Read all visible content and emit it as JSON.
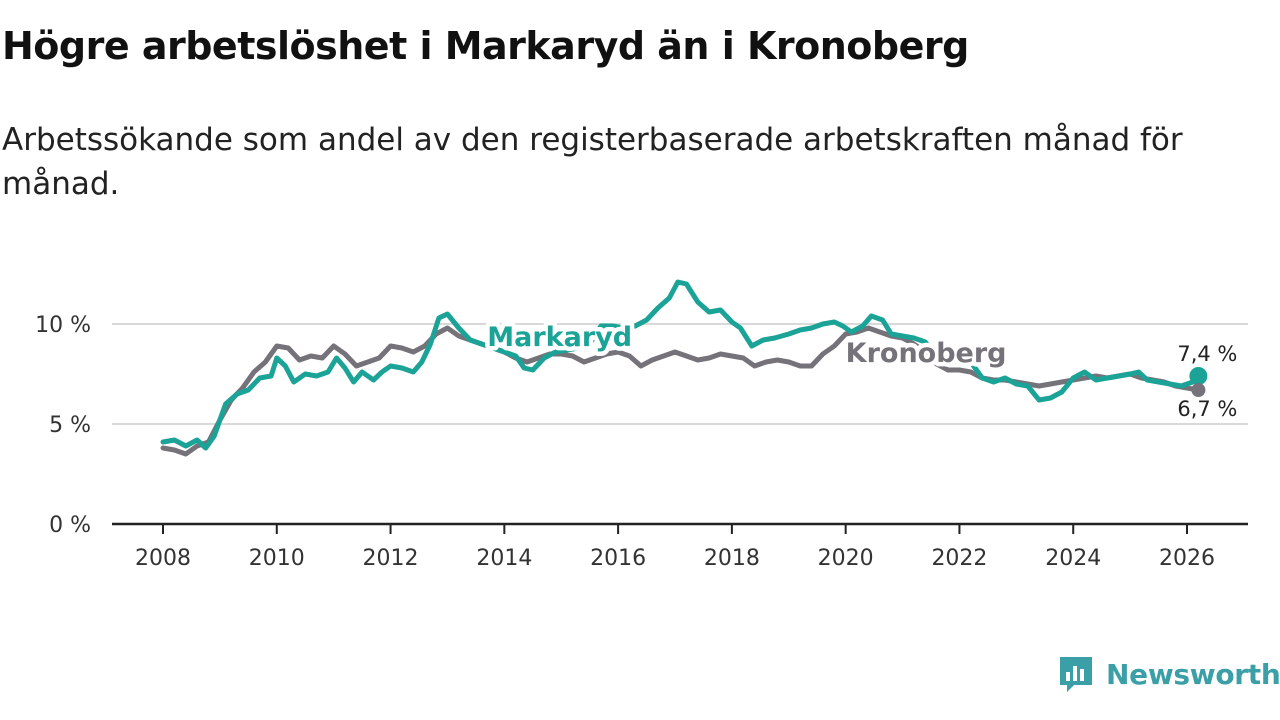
{
  "title": "Högre arbetslöshet i Markaryd än i Kronoberg",
  "subtitle": "Arbetssökande som andel av den registerbaserade arbetskraften månad för månad.",
  "colors": {
    "markaryd": "#1aa396",
    "kronoberg": "#75727a",
    "grid": "#d9d9d9",
    "axis": "#222222",
    "brand": "#3a9fa6"
  },
  "brand": {
    "name": "Newsworthy",
    "icon": "bar-chart-speech-icon"
  },
  "chart_data": {
    "type": "line",
    "title": "Högre arbetslöshet i Markaryd än i Kronoberg",
    "xlabel": "",
    "ylabel": "",
    "xlim": [
      2007.9,
      2026.4
    ],
    "ylim": [
      0,
      12.5
    ],
    "x_ticks": [
      2008,
      2010,
      2012,
      2014,
      2016,
      2018,
      2020,
      2022,
      2024,
      2026
    ],
    "y_ticks": [
      {
        "value": 0,
        "label": "0 %"
      },
      {
        "value": 5,
        "label": "5 %"
      },
      {
        "value": 10,
        "label": "10 %"
      }
    ],
    "grid": true,
    "series": [
      {
        "name": "Markaryd",
        "color": "#1aa396",
        "end_label": "7,4 %",
        "points": [
          [
            2008.0,
            4.1
          ],
          [
            2008.2,
            4.2
          ],
          [
            2008.4,
            3.9
          ],
          [
            2008.6,
            4.2
          ],
          [
            2008.75,
            3.8
          ],
          [
            2008.9,
            4.4
          ],
          [
            2009.1,
            6.0
          ],
          [
            2009.3,
            6.5
          ],
          [
            2009.5,
            6.7
          ],
          [
            2009.7,
            7.3
          ],
          [
            2009.9,
            7.4
          ],
          [
            2010.0,
            8.3
          ],
          [
            2010.15,
            7.9
          ],
          [
            2010.3,
            7.1
          ],
          [
            2010.5,
            7.5
          ],
          [
            2010.7,
            7.4
          ],
          [
            2010.9,
            7.6
          ],
          [
            2011.05,
            8.3
          ],
          [
            2011.2,
            7.8
          ],
          [
            2011.35,
            7.1
          ],
          [
            2011.5,
            7.6
          ],
          [
            2011.7,
            7.2
          ],
          [
            2011.85,
            7.6
          ],
          [
            2012.0,
            7.9
          ],
          [
            2012.2,
            7.8
          ],
          [
            2012.4,
            7.6
          ],
          [
            2012.55,
            8.1
          ],
          [
            2012.7,
            9.0
          ],
          [
            2012.85,
            10.3
          ],
          [
            2013.0,
            10.5
          ],
          [
            2013.2,
            9.8
          ],
          [
            2013.4,
            9.2
          ],
          [
            2013.6,
            9.0
          ],
          [
            2013.8,
            8.8
          ],
          [
            2014.0,
            8.6
          ],
          [
            2014.2,
            8.4
          ],
          [
            2014.35,
            7.8
          ],
          [
            2014.5,
            7.7
          ],
          [
            2014.7,
            8.3
          ],
          [
            2014.9,
            8.6
          ],
          [
            2015.1,
            8.7
          ],
          [
            2015.3,
            8.8
          ],
          [
            2015.5,
            9.0
          ],
          [
            2015.7,
            9.9
          ],
          [
            2015.9,
            9.9
          ],
          [
            2016.1,
            9.8
          ],
          [
            2016.3,
            9.9
          ],
          [
            2016.5,
            10.2
          ],
          [
            2016.7,
            10.8
          ],
          [
            2016.9,
            11.3
          ],
          [
            2017.05,
            12.1
          ],
          [
            2017.2,
            12.0
          ],
          [
            2017.4,
            11.1
          ],
          [
            2017.6,
            10.6
          ],
          [
            2017.8,
            10.7
          ],
          [
            2018.0,
            10.1
          ],
          [
            2018.15,
            9.8
          ],
          [
            2018.35,
            8.9
          ],
          [
            2018.55,
            9.2
          ],
          [
            2018.75,
            9.3
          ],
          [
            2019.0,
            9.5
          ],
          [
            2019.2,
            9.7
          ],
          [
            2019.4,
            9.8
          ],
          [
            2019.6,
            10.0
          ],
          [
            2019.8,
            10.1
          ],
          [
            2019.95,
            9.9
          ],
          [
            2020.1,
            9.6
          ],
          [
            2020.3,
            9.9
          ],
          [
            2020.45,
            10.4
          ],
          [
            2020.65,
            10.2
          ],
          [
            2020.8,
            9.5
          ],
          [
            2021.0,
            9.4
          ],
          [
            2021.2,
            9.3
          ],
          [
            2021.4,
            9.1
          ],
          [
            2021.6,
            8.3
          ],
          [
            2021.8,
            8.0
          ],
          [
            2022.0,
            8.2
          ],
          [
            2022.2,
            8.1
          ],
          [
            2022.4,
            7.3
          ],
          [
            2022.6,
            7.1
          ],
          [
            2022.8,
            7.3
          ],
          [
            2023.0,
            7.0
          ],
          [
            2023.2,
            6.9
          ],
          [
            2023.4,
            6.2
          ],
          [
            2023.6,
            6.3
          ],
          [
            2023.8,
            6.6
          ],
          [
            2024.0,
            7.3
          ],
          [
            2024.2,
            7.6
          ],
          [
            2024.4,
            7.2
          ],
          [
            2024.6,
            7.3
          ],
          [
            2024.8,
            7.4
          ],
          [
            2025.0,
            7.5
          ],
          [
            2025.15,
            7.6
          ],
          [
            2025.3,
            7.2
          ],
          [
            2025.5,
            7.1
          ],
          [
            2025.7,
            7.0
          ],
          [
            2025.9,
            6.9
          ],
          [
            2026.1,
            7.1
          ],
          [
            2026.2,
            7.4
          ]
        ]
      },
      {
        "name": "Kronoberg",
        "color": "#75727a",
        "end_label": "6,7 %",
        "points": [
          [
            2008.0,
            3.8
          ],
          [
            2008.2,
            3.7
          ],
          [
            2008.4,
            3.5
          ],
          [
            2008.6,
            3.9
          ],
          [
            2008.8,
            4.1
          ],
          [
            2009.0,
            5.2
          ],
          [
            2009.2,
            6.2
          ],
          [
            2009.4,
            6.8
          ],
          [
            2009.6,
            7.6
          ],
          [
            2009.8,
            8.1
          ],
          [
            2010.0,
            8.9
          ],
          [
            2010.2,
            8.8
          ],
          [
            2010.4,
            8.2
          ],
          [
            2010.6,
            8.4
          ],
          [
            2010.8,
            8.3
          ],
          [
            2011.0,
            8.9
          ],
          [
            2011.2,
            8.5
          ],
          [
            2011.4,
            7.9
          ],
          [
            2011.6,
            8.1
          ],
          [
            2011.8,
            8.3
          ],
          [
            2012.0,
            8.9
          ],
          [
            2012.2,
            8.8
          ],
          [
            2012.4,
            8.6
          ],
          [
            2012.6,
            8.9
          ],
          [
            2012.8,
            9.5
          ],
          [
            2013.0,
            9.8
          ],
          [
            2013.2,
            9.4
          ],
          [
            2013.4,
            9.2
          ],
          [
            2013.6,
            9.0
          ],
          [
            2013.8,
            8.8
          ],
          [
            2014.0,
            8.6
          ],
          [
            2014.2,
            8.3
          ],
          [
            2014.4,
            8.1
          ],
          [
            2014.6,
            8.3
          ],
          [
            2014.8,
            8.5
          ],
          [
            2015.0,
            8.5
          ],
          [
            2015.2,
            8.4
          ],
          [
            2015.4,
            8.1
          ],
          [
            2015.6,
            8.3
          ],
          [
            2015.8,
            8.5
          ],
          [
            2016.0,
            8.6
          ],
          [
            2016.2,
            8.4
          ],
          [
            2016.4,
            7.9
          ],
          [
            2016.6,
            8.2
          ],
          [
            2016.8,
            8.4
          ],
          [
            2017.0,
            8.6
          ],
          [
            2017.2,
            8.4
          ],
          [
            2017.4,
            8.2
          ],
          [
            2017.6,
            8.3
          ],
          [
            2017.8,
            8.5
          ],
          [
            2018.0,
            8.4
          ],
          [
            2018.2,
            8.3
          ],
          [
            2018.4,
            7.9
          ],
          [
            2018.6,
            8.1
          ],
          [
            2018.8,
            8.2
          ],
          [
            2019.0,
            8.1
          ],
          [
            2019.2,
            7.9
          ],
          [
            2019.4,
            7.9
          ],
          [
            2019.6,
            8.5
          ],
          [
            2019.8,
            8.9
          ],
          [
            2020.0,
            9.5
          ],
          [
            2020.2,
            9.6
          ],
          [
            2020.4,
            9.8
          ],
          [
            2020.6,
            9.6
          ],
          [
            2020.8,
            9.4
          ],
          [
            2021.0,
            9.3
          ],
          [
            2021.2,
            9.0
          ],
          [
            2021.4,
            8.6
          ],
          [
            2021.6,
            8.0
          ],
          [
            2021.8,
            7.7
          ],
          [
            2022.0,
            7.7
          ],
          [
            2022.2,
            7.6
          ],
          [
            2022.4,
            7.3
          ],
          [
            2022.6,
            7.2
          ],
          [
            2022.8,
            7.2
          ],
          [
            2023.0,
            7.1
          ],
          [
            2023.2,
            7.0
          ],
          [
            2023.4,
            6.9
          ],
          [
            2023.6,
            7.0
          ],
          [
            2023.8,
            7.1
          ],
          [
            2024.0,
            7.2
          ],
          [
            2024.2,
            7.3
          ],
          [
            2024.4,
            7.4
          ],
          [
            2024.6,
            7.3
          ],
          [
            2024.8,
            7.4
          ],
          [
            2025.0,
            7.5
          ],
          [
            2025.2,
            7.3
          ],
          [
            2025.4,
            7.2
          ],
          [
            2025.6,
            7.1
          ],
          [
            2025.8,
            6.9
          ],
          [
            2026.0,
            6.8
          ],
          [
            2026.2,
            6.7
          ]
        ]
      }
    ],
    "annotations": [
      {
        "text": "Markaryd",
        "series": "Markaryd",
        "x": 2013.7,
        "y": 9.4
      },
      {
        "text": "Kronoberg",
        "series": "Kronoberg",
        "x": 2020.0,
        "y": 8.6
      }
    ]
  }
}
